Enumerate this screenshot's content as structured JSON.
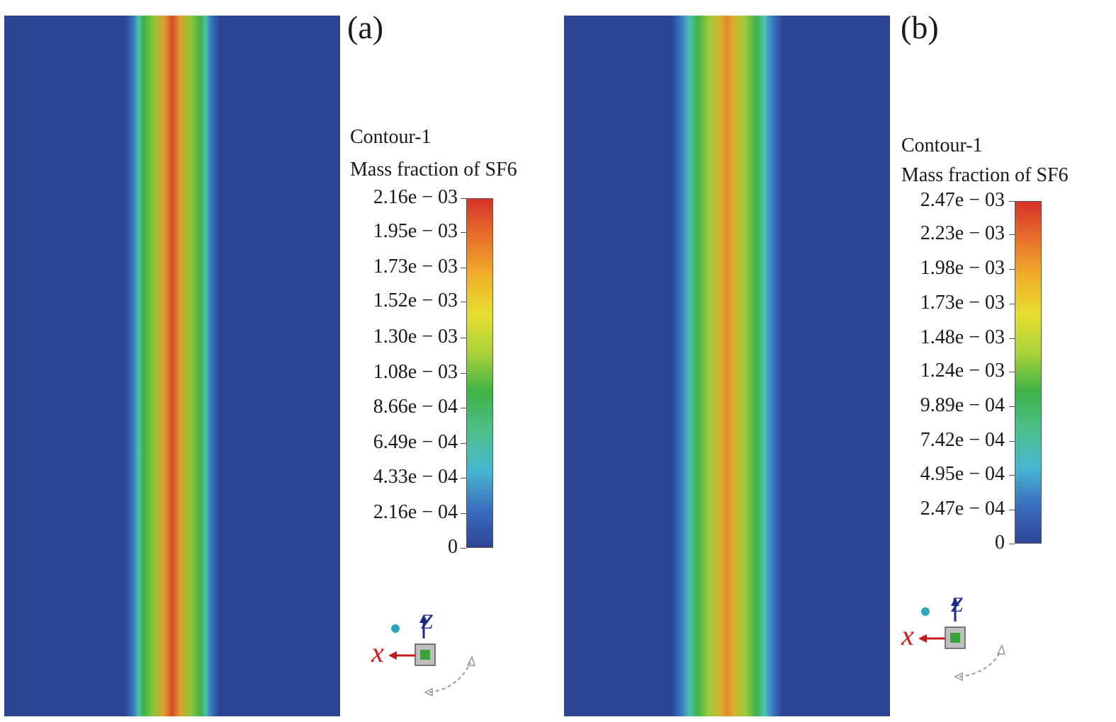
{
  "chart_data": [
    {
      "type": "heatmap",
      "panel_label": "(a)",
      "title_line1": "Contour-1",
      "title_line2": "Mass fraction of SF6",
      "variable": "Mass fraction of SF6",
      "range": [
        0,
        0.00216
      ],
      "tick_values": [
        0.00216,
        0.00195,
        0.00173,
        0.00152,
        0.0013,
        0.00108,
        0.000866,
        0.000649,
        0.000433,
        0.000216,
        0
      ],
      "tick_labels": [
        "2.16e − 03",
        "1.95e − 03",
        "1.73e − 03",
        "1.52e − 03",
        "1.30e − 03",
        "1.08e − 03",
        "8.66e − 04",
        "6.49e − 04",
        "4.33e − 04",
        "2.16e − 04",
        "0"
      ],
      "peak_value": 0.00216,
      "axes": {
        "x": "x",
        "z": "Z"
      }
    },
    {
      "type": "heatmap",
      "panel_label": "(b)",
      "title_line1": "Contour-1",
      "title_line2": "Mass fraction of SF6",
      "variable": "Mass fraction of SF6",
      "range": [
        0,
        0.00247
      ],
      "tick_values": [
        0.00247,
        0.00223,
        0.00198,
        0.00173,
        0.00148,
        0.00124,
        0.000989,
        0.000742,
        0.000495,
        0.000247,
        0
      ],
      "tick_labels": [
        "2.47e − 03",
        "2.23e − 03",
        "1.98e − 03",
        "1.73e − 03",
        "1.48e − 03",
        "1.24e − 03",
        "9.89e − 04",
        "7.42e − 04",
        "4.95e − 04",
        "2.47e − 04",
        "0"
      ],
      "peak_value": 0.00198,
      "axes": {
        "x": "x",
        "z": "Z"
      }
    }
  ],
  "colors": {
    "background_field": "#2e4596",
    "colormap": [
      "#2e4596",
      "#3a6fc0",
      "#46b8d0",
      "#4cc08a",
      "#3fb247",
      "#a8d23a",
      "#e6df2f",
      "#f0b02a",
      "#e9722a",
      "#d6322a"
    ]
  }
}
